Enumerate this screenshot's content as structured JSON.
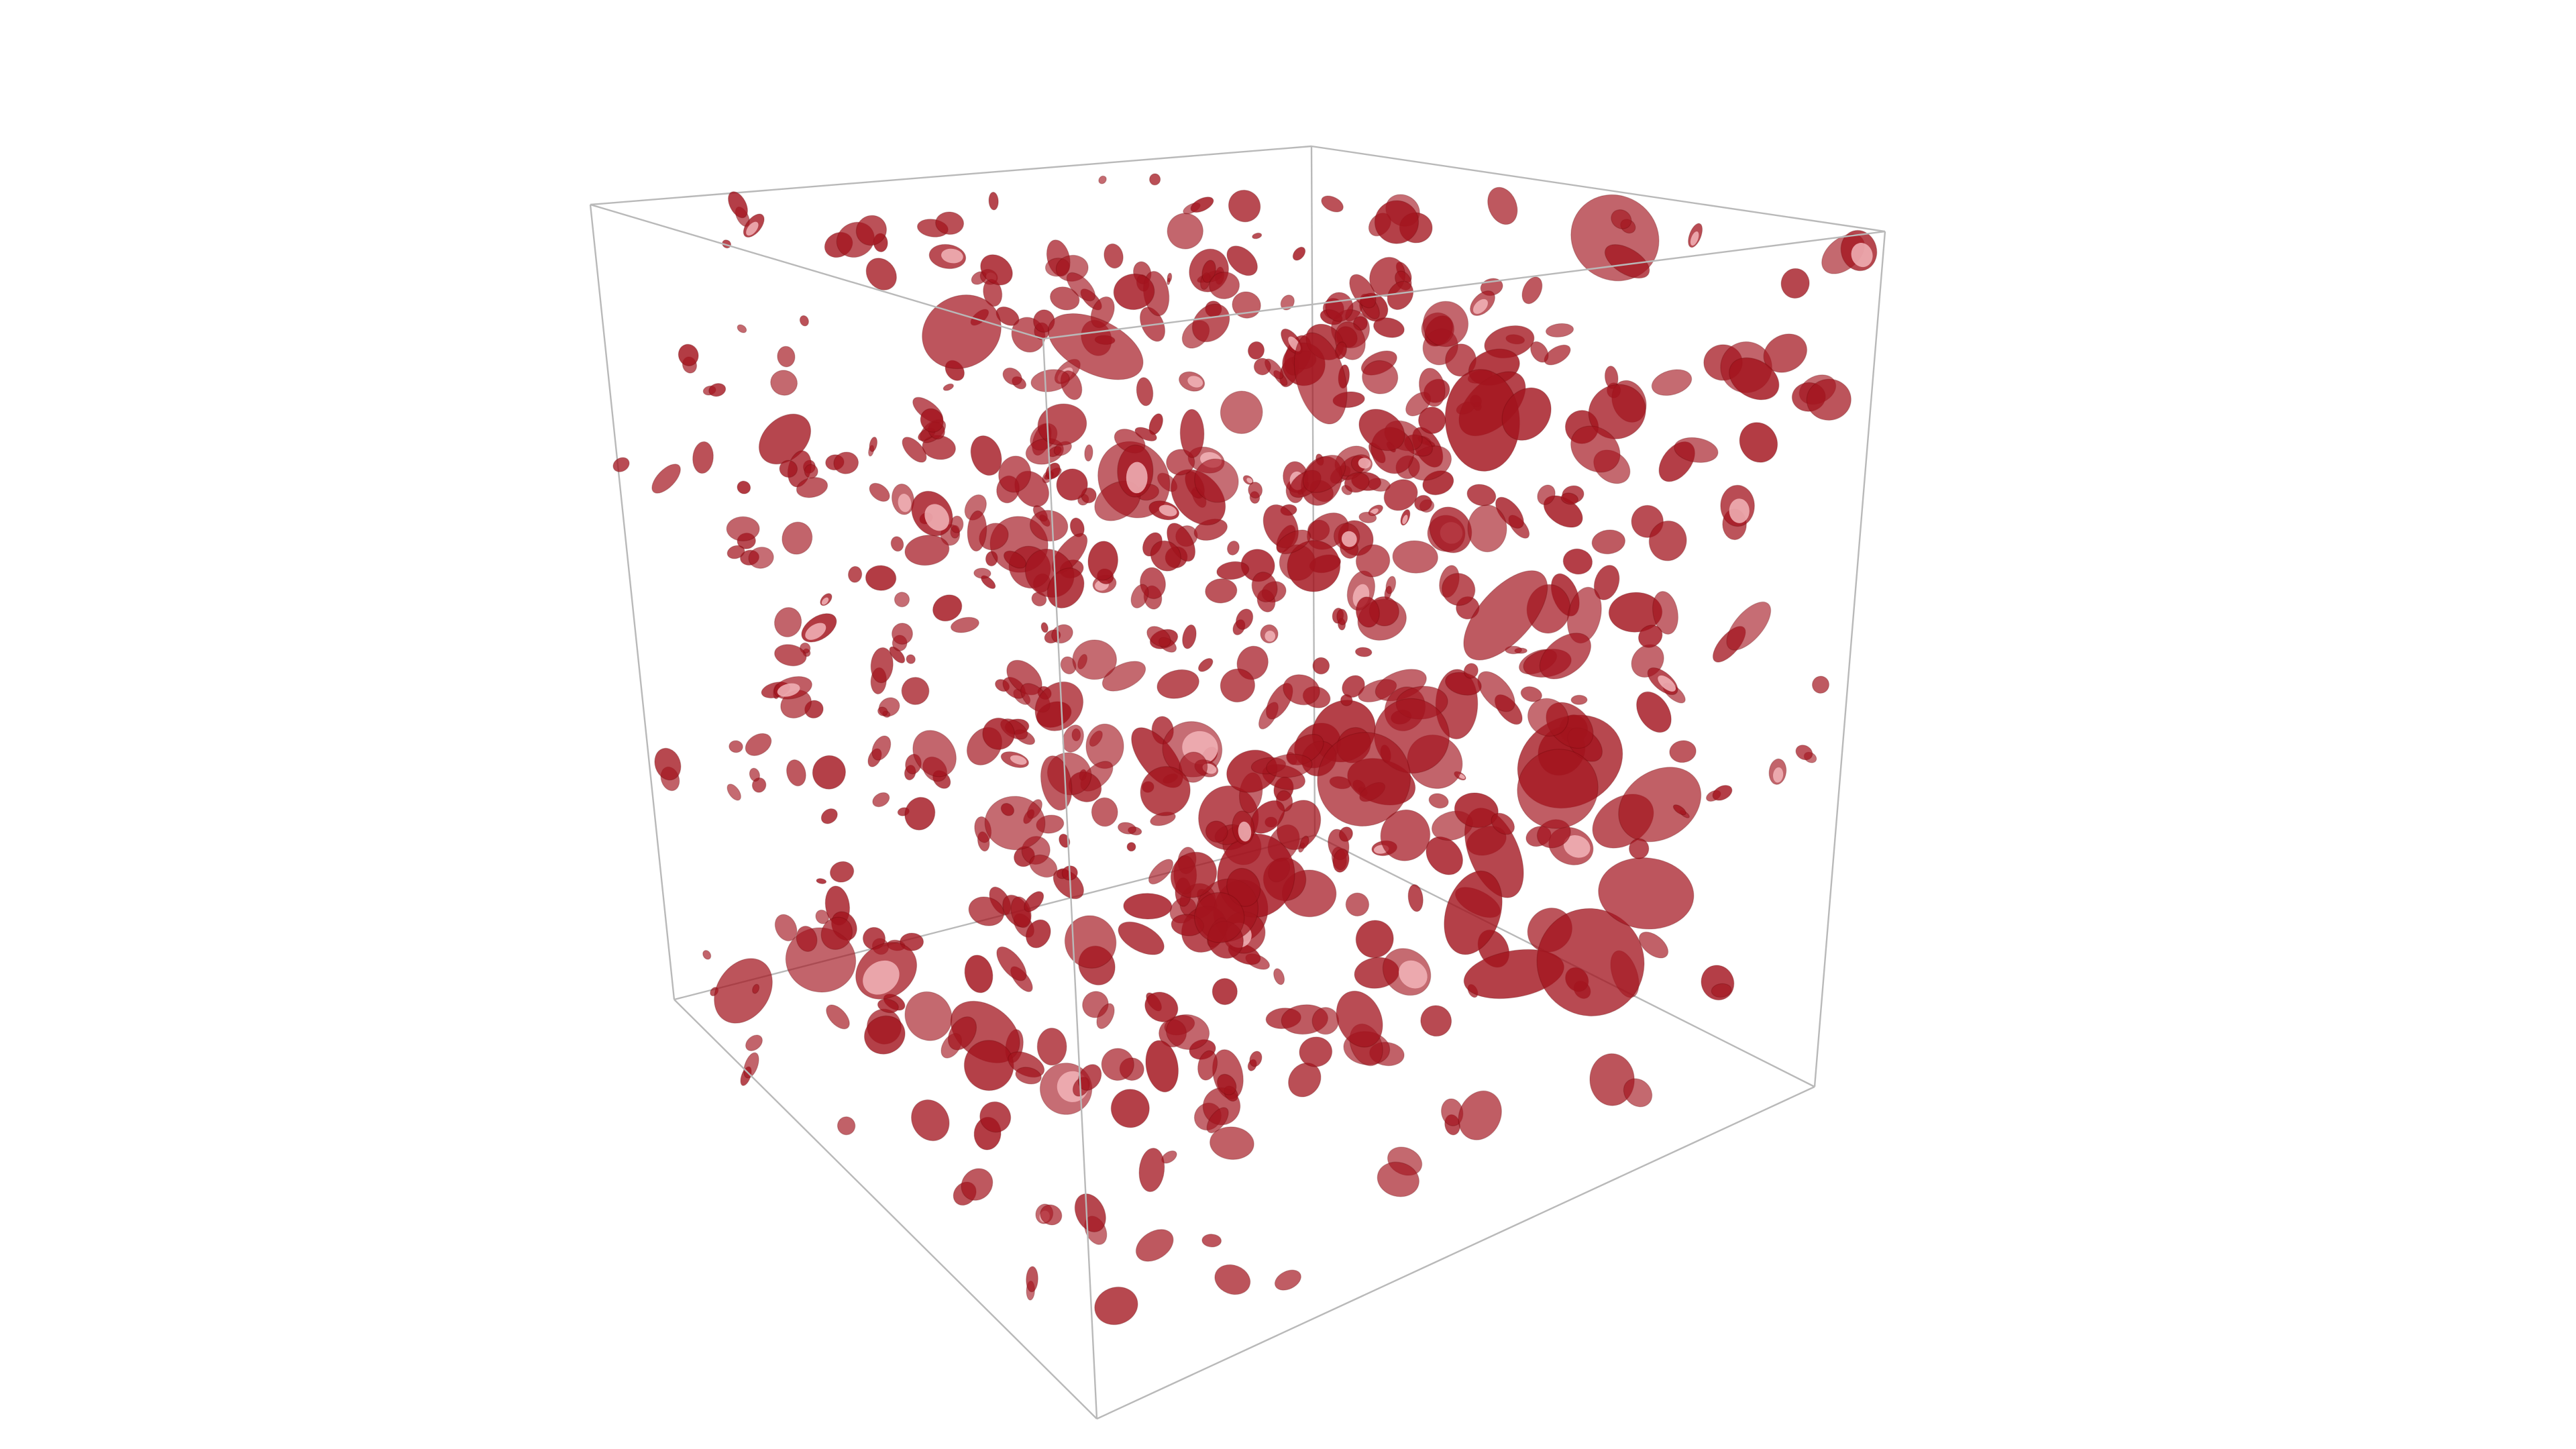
{
  "scene": {
    "background_color": "#ffffff",
    "blob_color": "#a3141e",
    "blob_highlight_color": "#f2b4b8",
    "cube_edge_color": "#b9b9b9",
    "blob_count": 620,
    "random_seed": 7
  }
}
